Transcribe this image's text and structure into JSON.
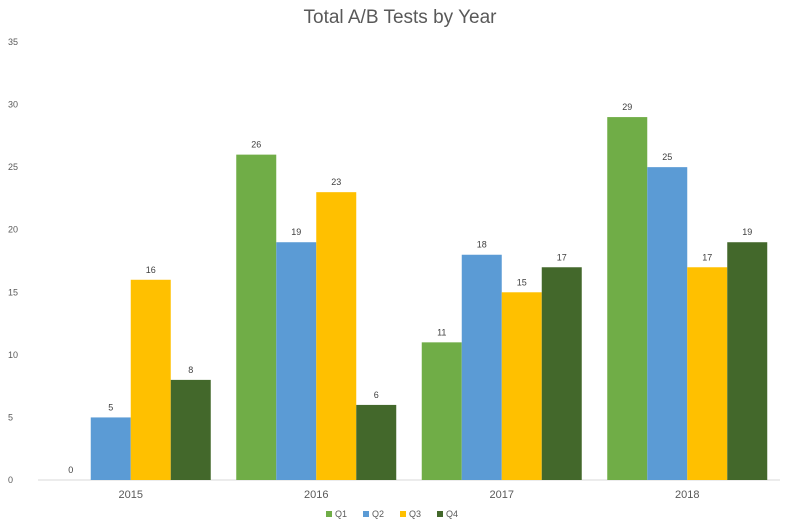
{
  "chart_data": {
    "type": "bar",
    "title": "Total A/B Tests by Year",
    "xlabel": "",
    "ylabel": "",
    "categories": [
      "2015",
      "2016",
      "2017",
      "2018"
    ],
    "series": [
      {
        "name": "Q1",
        "color": "#70ad47",
        "values": [
          0,
          26,
          11,
          29
        ]
      },
      {
        "name": "Q2",
        "color": "#5b9bd5",
        "values": [
          5,
          19,
          18,
          25
        ]
      },
      {
        "name": "Q3",
        "color": "#ffc000",
        "values": [
          16,
          23,
          15,
          17
        ]
      },
      {
        "name": "Q4",
        "color": "#43682b",
        "values": [
          8,
          6,
          17,
          19
        ]
      }
    ],
    "ylim": [
      0,
      35
    ],
    "yticks": [
      0,
      5,
      10,
      15,
      20,
      25,
      30,
      35
    ],
    "grid": false,
    "data_labels": true,
    "legend_position": "bottom"
  }
}
